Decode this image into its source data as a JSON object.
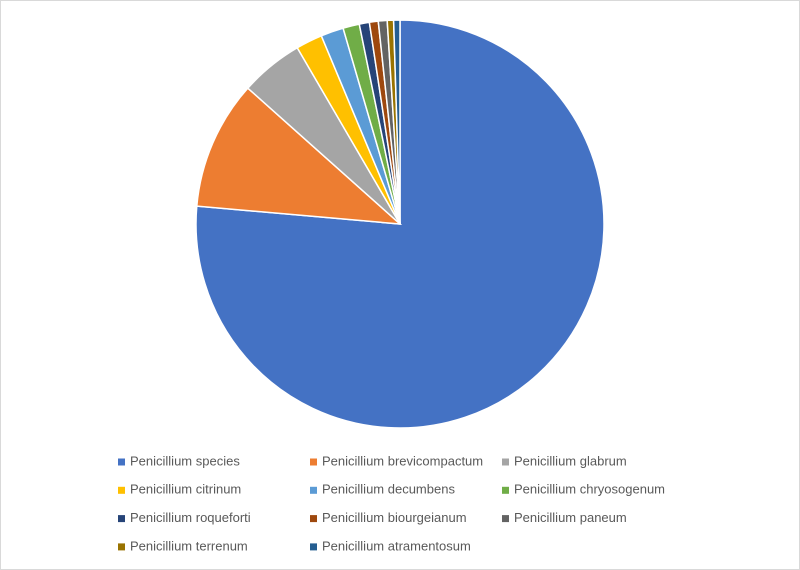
{
  "chart_data": {
    "type": "pie",
    "categories": [
      "Penicillium species",
      "Penicillium brevicompactum",
      "Penicillium glabrum",
      "Penicillium citrinum",
      "Penicillium decumbens",
      "Penicillium chryosogenum",
      "Penicillium roqueforti",
      "Penicillium biourgeianum",
      "Penicillium paneum",
      "Penicillium terrenum",
      "Penicillium atramentosum"
    ],
    "values": [
      76.4,
      10.2,
      5,
      2.1,
      1.8,
      1.3,
      0.8,
      0.7,
      0.7,
      0.5,
      0.5
    ],
    "colors": [
      "#4472c4",
      "#ed7d31",
      "#a5a5a5",
      "#ffc000",
      "#5b9bd5",
      "#70ad47",
      "#264478",
      "#9e480e",
      "#636363",
      "#997300",
      "#255e91"
    ],
    "legend": "bottom"
  }
}
